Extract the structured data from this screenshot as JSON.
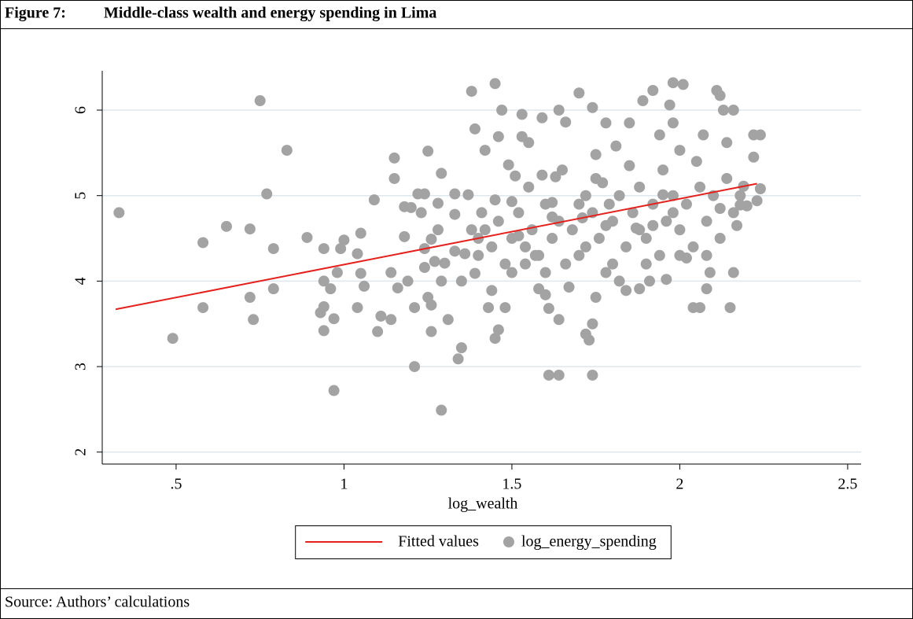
{
  "figure": {
    "label": "Figure 7:",
    "title": "Middle-class wealth and energy spending in Lima"
  },
  "chart_data": {
    "type": "scatter",
    "x_label": "log_wealth",
    "xlim": [
      0.28,
      2.54
    ],
    "ylim": [
      1.86,
      6.46
    ],
    "xticks": [
      {
        "value": 0.5,
        "label": ".5"
      },
      1,
      1.5,
      2,
      2.5
    ],
    "yticks": [
      2,
      3,
      4,
      5,
      6
    ],
    "grid": true,
    "legend": "bottom",
    "series": [
      {
        "name": "Fitted values",
        "type": "line",
        "color": "#e4211c",
        "x": [
          0.32,
          2.23
        ],
        "values": [
          3.67,
          5.14
        ]
      },
      {
        "name": "log_energy_spending",
        "type": "scatter",
        "color": "#a3a3a3",
        "x": [
          0.33,
          0.49,
          0.58,
          0.58,
          0.65,
          0.72,
          0.72,
          0.73,
          0.75,
          0.77,
          0.79,
          0.79,
          0.83,
          0.89,
          0.93,
          0.94,
          0.94,
          0.94,
          0.94,
          0.96,
          0.97,
          0.97,
          0.98,
          0.99,
          1.0,
          1.04,
          1.04,
          1.05,
          1.05,
          1.06,
          1.09,
          1.1,
          1.11,
          1.14,
          1.14,
          1.15,
          1.15,
          1.16,
          1.18,
          1.18,
          1.19,
          1.2,
          1.21,
          1.21,
          1.22,
          1.23,
          1.24,
          1.24,
          1.24,
          1.25,
          1.25,
          1.26,
          1.26,
          1.26,
          1.27,
          1.28,
          1.28,
          1.29,
          1.29,
          1.29,
          1.3,
          1.31,
          1.33,
          1.33,
          1.34,
          1.35,
          1.36,
          1.37,
          1.38,
          1.39,
          1.39,
          1.4,
          1.41,
          1.42,
          1.43,
          1.44,
          1.45,
          1.45,
          1.46,
          1.46,
          1.47,
          1.48,
          1.49,
          1.5,
          1.51,
          1.52,
          1.53,
          1.53,
          1.54,
          1.55,
          1.57,
          1.58,
          1.59,
          1.59,
          1.6,
          1.61,
          1.61,
          1.62,
          1.63,
          1.64,
          1.64,
          1.64,
          1.66,
          1.67,
          1.7,
          1.71,
          1.72,
          1.73,
          1.74,
          1.74,
          1.74,
          1.75,
          1.75,
          1.77,
          1.78,
          1.79,
          1.81,
          1.82,
          1.84,
          1.85,
          1.87,
          1.88,
          1.89,
          1.91,
          1.92,
          1.94,
          1.95,
          1.96,
          1.97,
          1.98,
          1.98,
          2.0,
          2.01,
          2.02,
          2.04,
          2.06,
          2.07,
          2.08,
          2.09,
          2.11,
          2.12,
          2.13,
          2.14,
          2.15,
          2.16,
          2.16,
          2.17,
          2.18,
          2.19,
          2.2,
          2.22,
          2.23,
          2.24,
          2.24,
          2.22,
          1.42,
          1.44,
          1.46,
          1.48,
          1.5,
          1.52,
          1.54,
          1.56,
          1.58,
          1.6,
          1.62,
          1.64,
          1.66,
          1.68,
          1.7,
          1.72,
          1.74,
          1.76,
          1.78,
          1.8,
          1.82,
          1.84,
          1.86,
          1.88,
          1.9,
          1.92,
          1.94,
          1.96,
          1.98,
          2.0,
          2.02,
          2.04,
          2.06,
          2.08,
          2.1,
          2.12,
          2.14,
          2.16,
          2.18,
          1.45,
          1.55,
          1.65,
          1.75,
          1.85,
          1.95,
          2.05,
          1.6,
          1.7,
          1.8,
          1.9,
          2.0,
          1.5,
          1.4,
          1.72,
          1.88,
          1.98,
          2.08,
          1.62,
          1.78,
          1.92,
          2.12,
          1.35,
          1.38,
          1.33
        ],
        "values": [
          4.8,
          3.33,
          4.45,
          3.69,
          4.64,
          4.61,
          3.81,
          3.55,
          6.11,
          5.02,
          4.38,
          3.91,
          5.53,
          4.51,
          3.63,
          3.42,
          3.7,
          4.0,
          4.38,
          3.91,
          2.72,
          3.56,
          4.1,
          4.38,
          4.48,
          4.32,
          3.69,
          4.56,
          4.09,
          3.94,
          4.95,
          3.41,
          3.59,
          3.55,
          4.1,
          5.2,
          5.44,
          3.92,
          4.52,
          4.87,
          4.0,
          4.86,
          3.0,
          3.69,
          5.02,
          4.8,
          5.02,
          4.38,
          4.16,
          3.81,
          5.52,
          4.49,
          3.41,
          3.72,
          4.23,
          4.91,
          4.6,
          5.26,
          2.49,
          4.0,
          4.21,
          3.55,
          5.02,
          4.78,
          3.09,
          3.22,
          4.32,
          5.01,
          6.22,
          5.78,
          4.09,
          4.5,
          4.8,
          5.53,
          3.69,
          3.89,
          6.31,
          3.33,
          3.43,
          5.69,
          6.0,
          3.69,
          5.36,
          4.93,
          5.23,
          4.53,
          5.95,
          5.69,
          4.2,
          5.62,
          4.3,
          3.91,
          5.24,
          5.91,
          3.84,
          2.9,
          3.68,
          4.92,
          5.22,
          2.9,
          6.0,
          3.55,
          5.86,
          3.93,
          6.2,
          4.74,
          3.38,
          3.31,
          2.9,
          3.5,
          6.03,
          3.81,
          5.48,
          5.15,
          5.85,
          4.9,
          5.58,
          4.0,
          3.89,
          5.85,
          4.62,
          3.91,
          6.11,
          4.0,
          6.23,
          5.71,
          5.01,
          4.02,
          6.06,
          6.32,
          5.85,
          5.53,
          6.3,
          4.27,
          3.69,
          3.69,
          5.71,
          3.91,
          4.1,
          6.23,
          6.17,
          6.0,
          5.62,
          3.69,
          6.0,
          4.1,
          4.65,
          4.89,
          5.11,
          4.88,
          5.71,
          4.94,
          5.71,
          5.08,
          5.45,
          4.6,
          4.4,
          4.7,
          4.2,
          4.5,
          4.8,
          4.4,
          4.6,
          4.3,
          4.9,
          4.5,
          4.7,
          4.2,
          4.6,
          4.9,
          4.4,
          4.8,
          4.5,
          4.1,
          4.7,
          5.0,
          4.4,
          4.8,
          5.1,
          4.5,
          4.9,
          4.3,
          4.7,
          5.0,
          4.6,
          4.9,
          4.4,
          5.1,
          4.7,
          5.0,
          4.5,
          5.2,
          4.8,
          5.0,
          4.95,
          5.1,
          5.3,
          5.2,
          5.35,
          5.3,
          5.4,
          4.1,
          4.3,
          4.2,
          4.2,
          4.3,
          4.1,
          4.3,
          5.0,
          4.6,
          4.8,
          4.3,
          4.75,
          4.65,
          4.65,
          4.85,
          4.0,
          4.6,
          4.35
        ]
      }
    ]
  },
  "source": "Source: Authors’ calculations"
}
